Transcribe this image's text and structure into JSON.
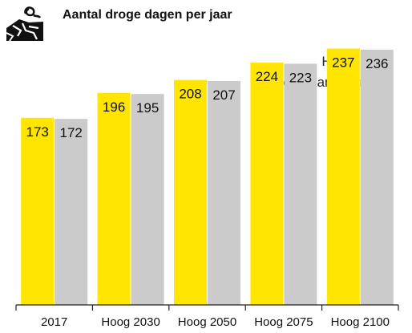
{
  "title": "Aantal droge dagen per jaar",
  "logo_icon": "drought-cracked-earth-icon",
  "chart_data": {
    "type": "bar",
    "title": "Aantal droge dagen per jaar",
    "categories": [
      "2017",
      "Hoog 2030",
      "Hoog 2050",
      "Hoog 2075",
      "Hoog 2100"
    ],
    "series": [
      {
        "name": "Hasselt",
        "color": "#FFE500",
        "values": [
          173,
          196,
          208,
          224,
          237
        ]
      },
      {
        "name": "Heel Vlaanderen",
        "color": "#CBCBCB",
        "values": [
          172,
          195,
          207,
          223,
          236
        ]
      }
    ],
    "ylim": [
      0,
      250
    ],
    "grid": false,
    "legend_position": "top-right",
    "data_labels": true
  }
}
